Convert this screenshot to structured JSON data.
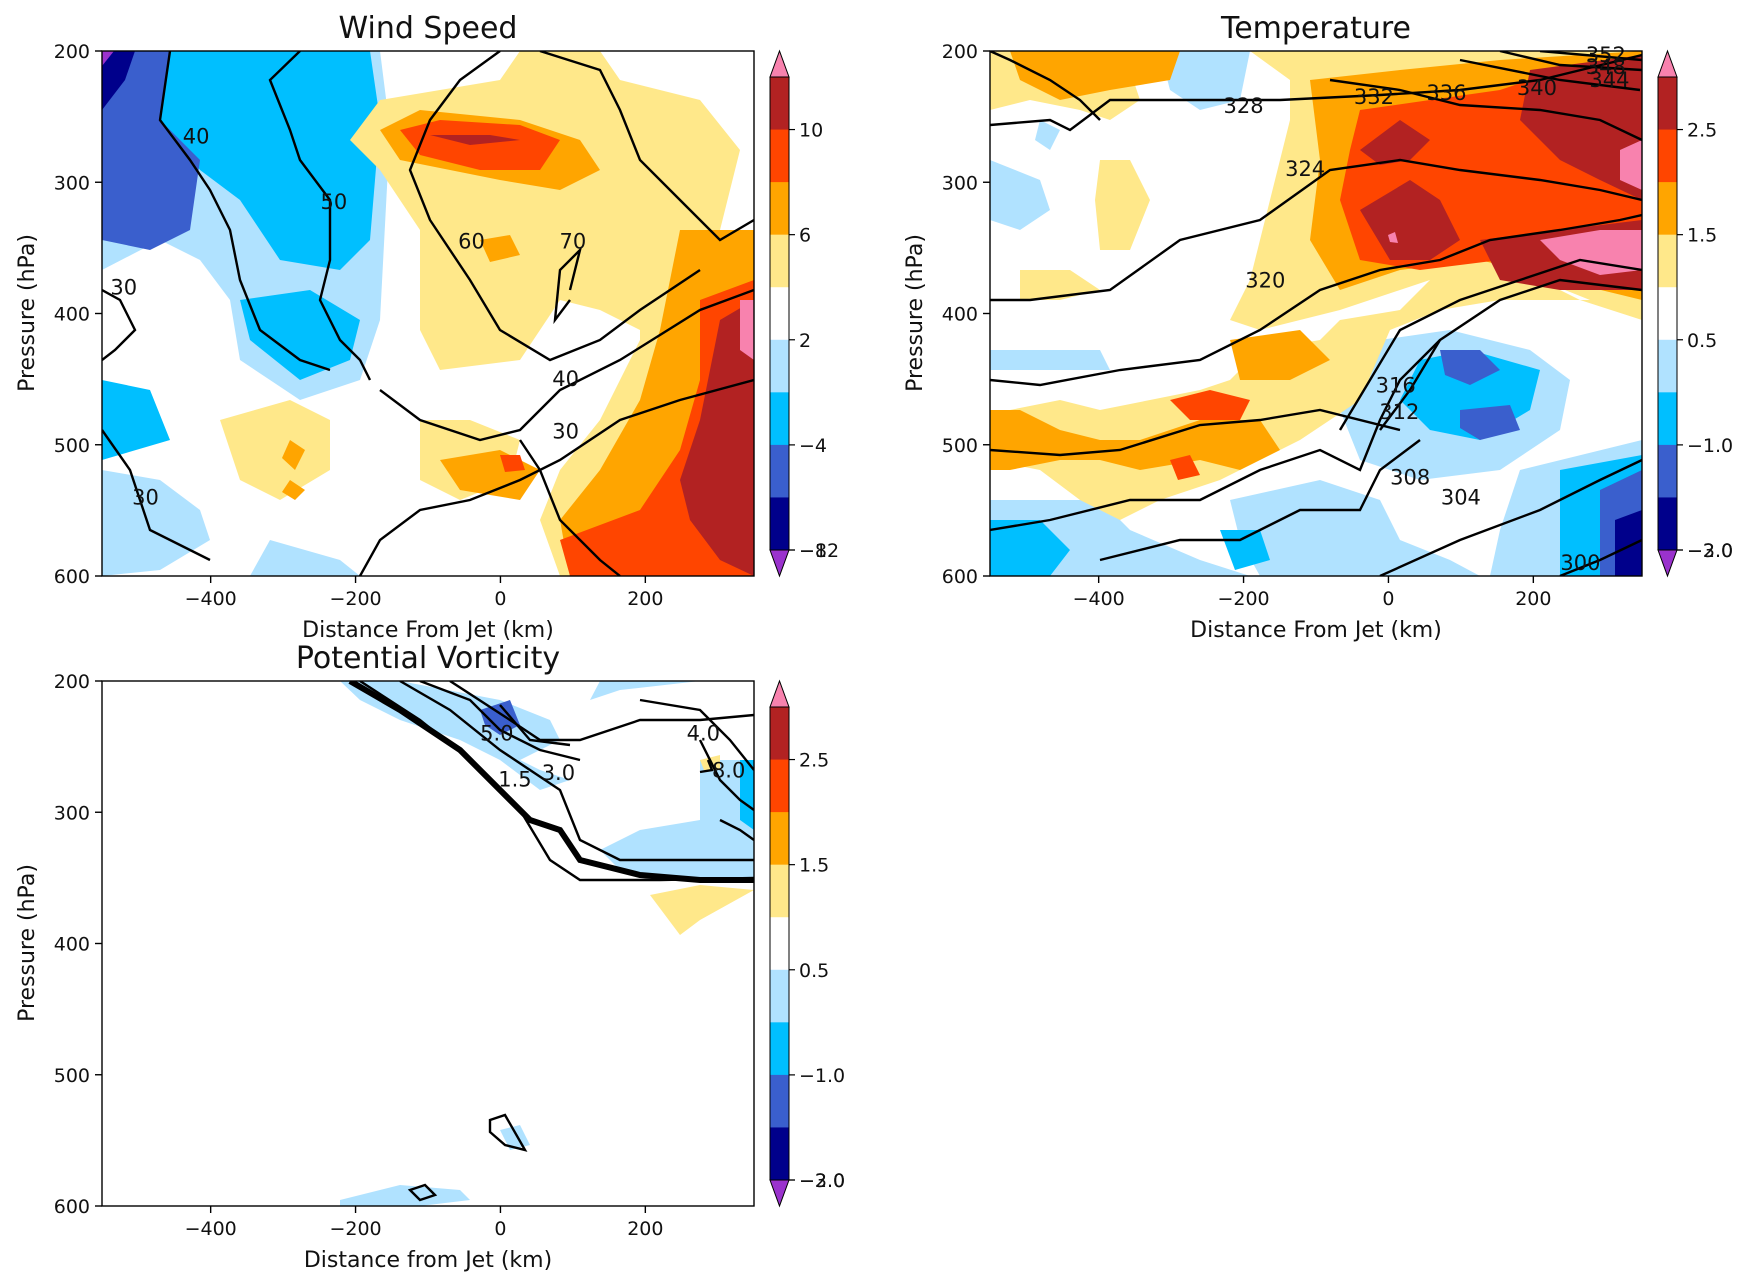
{
  "chart_data": [
    {
      "type": "heatmap",
      "title": "Wind Speed",
      "xlabel": "Distance From Jet (km)",
      "ylabel": "Pressure (hPa)",
      "xlim": [
        -550,
        350
      ],
      "ylim": [
        600,
        200
      ],
      "x_ticks": [
        "−400",
        "−200",
        "0",
        "200"
      ],
      "y_ticks": [
        "200",
        "300",
        "400",
        "500",
        "600"
      ],
      "colorbar_ticks": [
        "10",
        "6",
        "2",
        "−4",
        "−8",
        "−12"
      ],
      "colorbar_colors": [
        "#f882ae",
        "#b22222",
        "#ff4500",
        "#ffa500",
        "#ffe88a",
        "#ffffff",
        "#b0e2ff",
        "#00bfff",
        "#3a5fcd",
        "#00008b",
        "#9a32cd"
      ],
      "contour_labels": [
        {
          "text": "40",
          "x": -420,
          "y": 265
        },
        {
          "text": "50",
          "x": -230,
          "y": 315
        },
        {
          "text": "30",
          "x": -520,
          "y": 380
        },
        {
          "text": "60",
          "x": -40,
          "y": 345
        },
        {
          "text": "70",
          "x": 100,
          "y": 345
        },
        {
          "text": "40",
          "x": 90,
          "y": 450
        },
        {
          "text": "30",
          "x": 90,
          "y": 490
        },
        {
          "text": "30",
          "x": -490,
          "y": 540
        }
      ],
      "filled_regions": [
        {
          "color": "#3a5fcd",
          "x": -460,
          "y": 250,
          "value": -6
        },
        {
          "color": "#00008b",
          "x": -540,
          "y": 215,
          "value": -10
        },
        {
          "color": "#00bfff",
          "x": -330,
          "y": 240,
          "value": -5
        },
        {
          "color": "#ffa500",
          "x": -50,
          "y": 250,
          "value": 5
        },
        {
          "color": "#ff4500",
          "x": -100,
          "y": 250,
          "value": 7
        },
        {
          "color": "#b22222",
          "x": 310,
          "y": 450,
          "value": 9
        },
        {
          "color": "#ff4500",
          "x": 220,
          "y": 500,
          "value": 7
        },
        {
          "color": "#ffe88a",
          "x": 0,
          "y": 290,
          "value": 3
        }
      ]
    },
    {
      "type": "heatmap",
      "title": "Temperature",
      "xlabel": "Distance From Jet (km)",
      "ylabel": "Pressure (hPa)",
      "xlim": [
        -550,
        350
      ],
      "ylim": [
        600,
        200
      ],
      "x_ticks": [
        "−400",
        "−200",
        "0",
        "200"
      ],
      "y_ticks": [
        "200",
        "300",
        "400",
        "500",
        "600"
      ],
      "colorbar_ticks": [
        "2.5",
        "1.5",
        "0.5",
        "−1.0",
        "−2.0",
        "−3.0"
      ],
      "colorbar_colors": [
        "#f882ae",
        "#b22222",
        "#ff4500",
        "#ffa500",
        "#ffe88a",
        "#ffffff",
        "#b0e2ff",
        "#00bfff",
        "#3a5fcd",
        "#00008b",
        "#9a32cd"
      ],
      "contour_labels": [
        {
          "text": "352",
          "x": 300,
          "y": 203
        },
        {
          "text": "348",
          "x": 300,
          "y": 212
        },
        {
          "text": "344",
          "x": 305,
          "y": 222
        },
        {
          "text": "340",
          "x": 205,
          "y": 228
        },
        {
          "text": "336",
          "x": 80,
          "y": 232
        },
        {
          "text": "332",
          "x": -20,
          "y": 235
        },
        {
          "text": "328",
          "x": -200,
          "y": 242
        },
        {
          "text": "324",
          "x": -115,
          "y": 290
        },
        {
          "text": "320",
          "x": -170,
          "y": 375
        },
        {
          "text": "316",
          "x": 10,
          "y": 455
        },
        {
          "text": "312",
          "x": 15,
          "y": 475
        },
        {
          "text": "308",
          "x": 30,
          "y": 525
        },
        {
          "text": "304",
          "x": 100,
          "y": 540
        },
        {
          "text": "300",
          "x": 265,
          "y": 590
        }
      ],
      "filled_regions": [
        {
          "color": "#b22222",
          "x": 20,
          "y": 290,
          "value": 2.2
        },
        {
          "color": "#f882ae",
          "x": 270,
          "y": 310,
          "value": 2.8
        },
        {
          "color": "#ff4500",
          "x": 100,
          "y": 270,
          "value": 1.8
        },
        {
          "color": "#3a5fcd",
          "x": 100,
          "y": 420,
          "value": -1.8
        },
        {
          "color": "#00bfff",
          "x": -480,
          "y": 570,
          "value": -1.3
        },
        {
          "color": "#ffa500",
          "x": -400,
          "y": 450,
          "value": 1.2
        }
      ]
    },
    {
      "type": "heatmap",
      "title": "Potential Vorticity",
      "xlabel": "Distance from Jet (km)",
      "ylabel": "Pressure (hPa)",
      "xlim": [
        -550,
        350
      ],
      "ylim": [
        600,
        200
      ],
      "x_ticks": [
        "−400",
        "−200",
        "0",
        "200"
      ],
      "y_ticks": [
        "200",
        "300",
        "400",
        "500",
        "600"
      ],
      "colorbar_ticks": [
        "2.5",
        "1.5",
        "0.5",
        "−1.0",
        "−2.0",
        "−3.0"
      ],
      "colorbar_colors": [
        "#f882ae",
        "#b22222",
        "#ff4500",
        "#ffa500",
        "#ffe88a",
        "#ffffff",
        "#b0e2ff",
        "#00bfff",
        "#3a5fcd",
        "#00008b",
        "#9a32cd"
      ],
      "contour_labels": [
        {
          "text": "5.0",
          "x": -5,
          "y": 240
        },
        {
          "text": "4.0",
          "x": 280,
          "y": 240
        },
        {
          "text": "3.0",
          "x": 80,
          "y": 270
        },
        {
          "text": "1.5",
          "x": 20,
          "y": 275
        },
        {
          "text": "8.0",
          "x": 315,
          "y": 268
        }
      ],
      "filled_regions": [
        {
          "color": "#3a5fcd",
          "x": -30,
          "y": 225,
          "value": -1.6
        },
        {
          "color": "#00bfff",
          "x": 345,
          "y": 265,
          "value": -1.2
        },
        {
          "color": "#ffe88a",
          "x": 250,
          "y": 320,
          "value": 0.7
        }
      ]
    }
  ]
}
